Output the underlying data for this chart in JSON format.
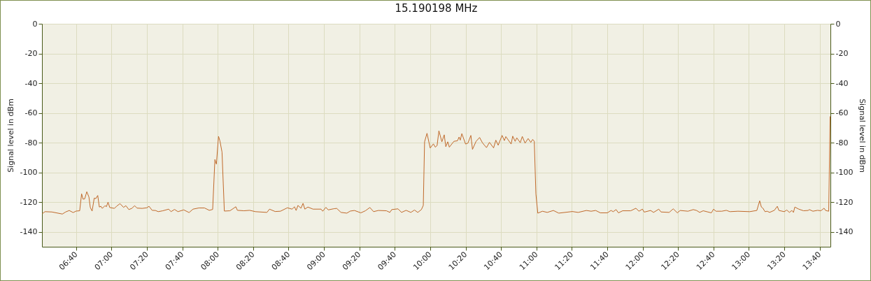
{
  "chart_data": {
    "type": "line",
    "title": "15.190198 MHz",
    "ylabel": "Signal level in dBm",
    "y2label": "Signal level in dBm",
    "series": [
      {
        "color": "#c0692a",
        "x": [
          6.347,
          6.373,
          6.438,
          6.537,
          6.568,
          6.602,
          6.638,
          6.667,
          6.7,
          6.718,
          6.732,
          6.747,
          6.767,
          6.787,
          6.8,
          6.817,
          6.837,
          6.852,
          6.87,
          6.885,
          6.9,
          6.913,
          6.938,
          6.952,
          6.967,
          6.983,
          7.027,
          7.048,
          7.08,
          7.113,
          7.135,
          7.163,
          7.19,
          7.218,
          7.24,
          7.288,
          7.332,
          7.353,
          7.382,
          7.413,
          7.44,
          7.483,
          7.538,
          7.56,
          7.593,
          7.625,
          7.68,
          7.73,
          7.767,
          7.822,
          7.875,
          7.92,
          7.952,
          7.973,
          7.987,
          8.007,
          8.02,
          8.04,
          8.062,
          8.115,
          8.17,
          8.185,
          8.247,
          8.3,
          8.355,
          8.463,
          8.487,
          8.54,
          8.59,
          8.655,
          8.7,
          8.722,
          8.738,
          8.755,
          8.783,
          8.803,
          8.82,
          8.848,
          8.897,
          8.973,
          8.988,
          9.018,
          9.04,
          9.095,
          9.12,
          9.16,
          9.215,
          9.248,
          9.287,
          9.347,
          9.39,
          9.432,
          9.467,
          9.512,
          9.588,
          9.62,
          9.638,
          9.697,
          9.73,
          9.773,
          9.818,
          9.852,
          9.883,
          9.917,
          9.935,
          9.947,
          9.97,
          10,
          10.03,
          10.048,
          10.065,
          10.082,
          10.11,
          10.132,
          10.147,
          10.165,
          10.18,
          10.223,
          10.257,
          10.272,
          10.283,
          10.298,
          10.333,
          10.355,
          10.383,
          10.398,
          10.432,
          10.465,
          10.493,
          10.53,
          10.558,
          10.597,
          10.618,
          10.64,
          10.677,
          10.698,
          10.712,
          10.762,
          10.777,
          10.8,
          10.815,
          10.848,
          10.867,
          10.893,
          10.922,
          10.947,
          10.965,
          10.98,
          10.995,
          11.013,
          11.057,
          11.102,
          11.16,
          11.21,
          11.338,
          11.393,
          11.47,
          11.515,
          11.558,
          11.602,
          11.668,
          11.702,
          11.723,
          11.75,
          11.772,
          11.812,
          11.888,
          11.937,
          11.965,
          11.998,
          12.015,
          12.075,
          12.103,
          12.152,
          12.173,
          12.25,
          12.288,
          12.327,
          12.353,
          12.427,
          12.477,
          12.508,
          12.537,
          12.57,
          12.647,
          12.668,
          12.69,
          12.745,
          12.788,
          12.822,
          12.898,
          13.008,
          13.075,
          13.102,
          13.118,
          13.133,
          13.152,
          13.173,
          13.195,
          13.24,
          13.268,
          13.283,
          13.333,
          13.357,
          13.382,
          13.405,
          13.42,
          13.433,
          13.47,
          13.515,
          13.558,
          13.57,
          13.603,
          13.647,
          13.678,
          13.708,
          13.723,
          13.752,
          13.765
        ],
        "values": [
          -127.8,
          -126.4,
          -126.6,
          -128,
          -126.6,
          -125.6,
          -127,
          -126,
          -125.8,
          -114.4,
          -118,
          -117.8,
          -113,
          -116.5,
          -123.6,
          -126,
          -117.3,
          -117.6,
          -115.5,
          -123.3,
          -122.8,
          -124.2,
          -122.4,
          -123,
          -120,
          -123.6,
          -124.2,
          -122.7,
          -121,
          -123.5,
          -122.4,
          -125,
          -124.2,
          -122.4,
          -124,
          -124.2,
          -123.8,
          -122.8,
          -125.5,
          -125.6,
          -126.4,
          -125.8,
          -124.7,
          -126.4,
          -124.9,
          -126.4,
          -125.2,
          -127,
          -124.7,
          -123.9,
          -123.9,
          -125.5,
          -124.9,
          -91.3,
          -94.4,
          -75.7,
          -78.7,
          -86.3,
          -126,
          -125.8,
          -123.1,
          -125.5,
          -125.8,
          -125.5,
          -126.4,
          -126.9,
          -124.7,
          -126.3,
          -126.1,
          -123.8,
          -124.7,
          -123.1,
          -125.6,
          -122.2,
          -124.1,
          -120.8,
          -124.7,
          -123.3,
          -124.7,
          -124.7,
          -126.1,
          -123.5,
          -125.2,
          -124.4,
          -124.2,
          -126.9,
          -127.4,
          -126,
          -125.6,
          -127.2,
          -125.8,
          -123.6,
          -126.4,
          -125.6,
          -125.8,
          -126.9,
          -125,
          -124.5,
          -126.9,
          -125.5,
          -126.9,
          -125.3,
          -126.9,
          -125,
          -122.2,
          -79.4,
          -73.7,
          -83.6,
          -80.8,
          -83,
          -81.9,
          -72,
          -79.4,
          -74.7,
          -82.7,
          -79.4,
          -83,
          -79.1,
          -78.7,
          -76.2,
          -78.3,
          -73.9,
          -80.9,
          -80.3,
          -75.1,
          -84.5,
          -79.1,
          -76.5,
          -80.2,
          -83.3,
          -79.8,
          -83.5,
          -78.3,
          -81.7,
          -75.1,
          -78.6,
          -75.9,
          -80.9,
          -75.6,
          -79.1,
          -76.7,
          -80,
          -75.8,
          -80.3,
          -77.2,
          -79.8,
          -77.8,
          -79.1,
          -114.4,
          -127.4,
          -126.1,
          -126.9,
          -125.6,
          -127.4,
          -126.3,
          -126.9,
          -125.6,
          -126.1,
          -125.6,
          -127.2,
          -127.2,
          -125.6,
          -126.4,
          -125,
          -127.2,
          -125.8,
          -125.8,
          -124.1,
          -126.1,
          -124.7,
          -126.7,
          -125.6,
          -126.9,
          -124.7,
          -126.6,
          -126.9,
          -124.5,
          -127.2,
          -125.6,
          -126.1,
          -125,
          -125.6,
          -126.9,
          -125.8,
          -127.2,
          -124.7,
          -126.1,
          -126.1,
          -125.5,
          -126.4,
          -126.1,
          -126.4,
          -125.6,
          -119.1,
          -123.3,
          -124.1,
          -126.4,
          -126.1,
          -126.9,
          -125.5,
          -122.8,
          -125.6,
          -126.4,
          -125.3,
          -126.9,
          -125.6,
          -126.9,
          -123.3,
          -124.7,
          -125.8,
          -125.6,
          -125,
          -126.1,
          -125.5,
          -125.8,
          -124.1,
          -125.6,
          -126.1,
          -62.3
        ]
      }
    ],
    "xlim": [
      6.345,
      13.768
    ],
    "xticks": [
      {
        "value": 6.6667,
        "label": "06:40"
      },
      {
        "value": 7,
        "label": "07:00"
      },
      {
        "value": 7.3333,
        "label": "07:20"
      },
      {
        "value": 7.6667,
        "label": "07:40"
      },
      {
        "value": 8,
        "label": "08:00"
      },
      {
        "value": 8.3333,
        "label": "08:20"
      },
      {
        "value": 8.6667,
        "label": "08:40"
      },
      {
        "value": 9,
        "label": "09:00"
      },
      {
        "value": 9.3333,
        "label": "09:20"
      },
      {
        "value": 9.6667,
        "label": "09:40"
      },
      {
        "value": 10,
        "label": "10:00"
      },
      {
        "value": 10.3333,
        "label": "10:20"
      },
      {
        "value": 10.6667,
        "label": "10:40"
      },
      {
        "value": 11,
        "label": "11:00"
      },
      {
        "value": 11.3333,
        "label": "11:20"
      },
      {
        "value": 11.6667,
        "label": "11:40"
      },
      {
        "value": 12,
        "label": "12:00"
      },
      {
        "value": 12.3333,
        "label": "12:20"
      },
      {
        "value": 12.6667,
        "label": "12:40"
      },
      {
        "value": 13,
        "label": "13:00"
      },
      {
        "value": 13.3333,
        "label": "13:20"
      },
      {
        "value": 13.6667,
        "label": "13:40"
      }
    ],
    "ylim": [
      -150,
      0
    ],
    "yticks": [
      0,
      -20,
      -40,
      -60,
      -80,
      -100,
      -120,
      -140
    ],
    "y2lim": [
      -150,
      0
    ],
    "y2ticks": [
      0,
      -20,
      -40,
      -60,
      -80,
      -100,
      -120,
      -140
    ],
    "grid": true
  }
}
